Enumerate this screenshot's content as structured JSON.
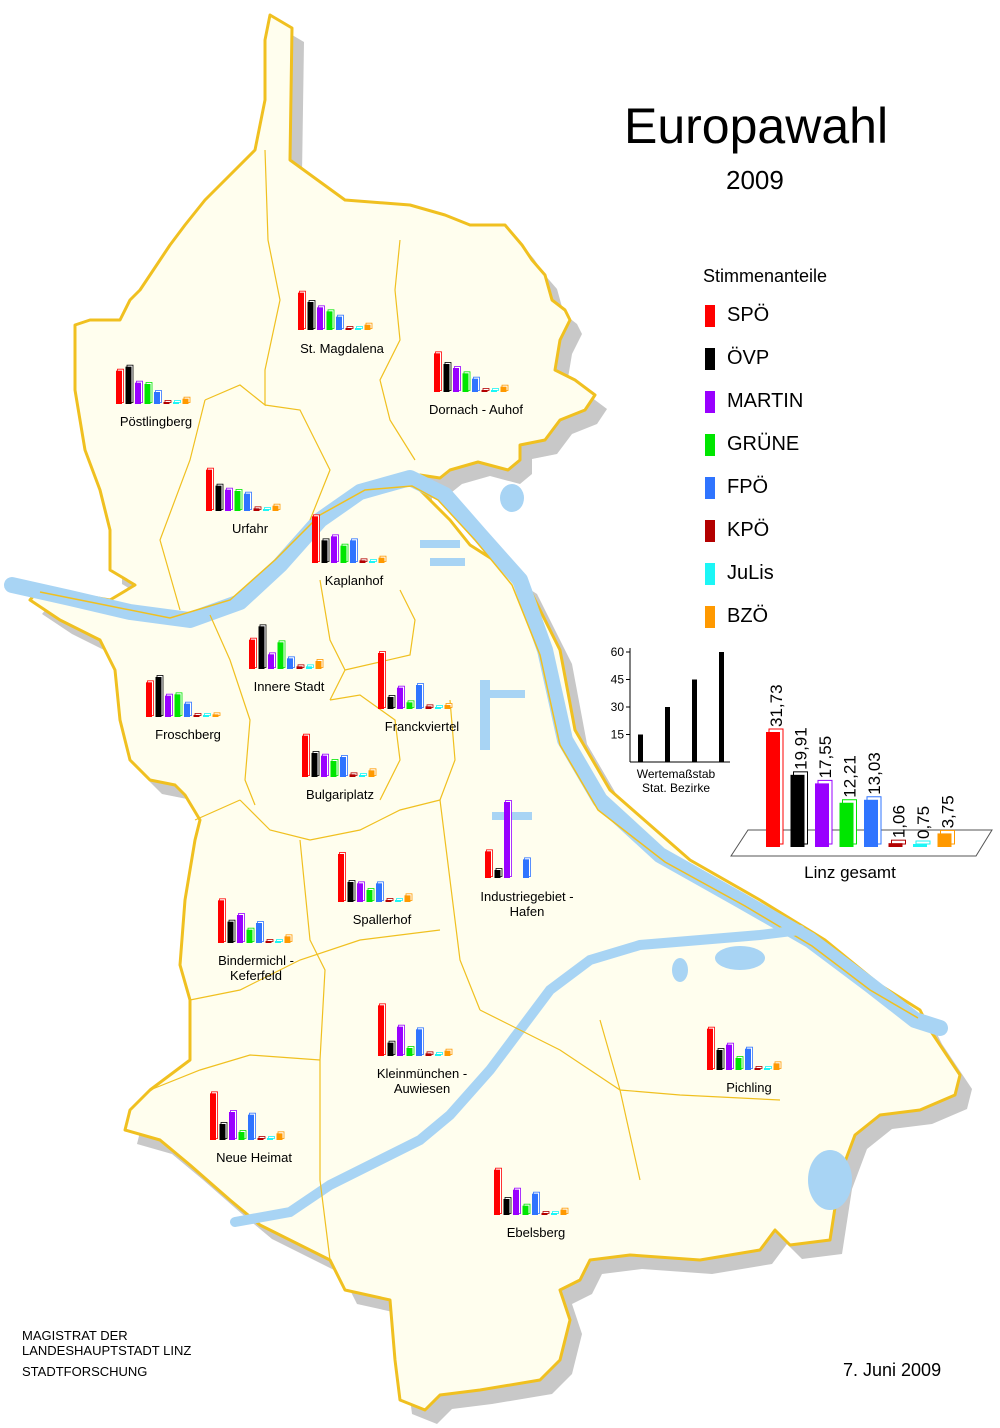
{
  "title": "Europawahl",
  "year": "2009",
  "legend": {
    "title": "Stimmenanteile",
    "items": [
      {
        "label": "SPÖ",
        "color": "#ff0000"
      },
      {
        "label": "ÖVP",
        "color": "#000000"
      },
      {
        "label": "MARTIN",
        "color": "#9900ff"
      },
      {
        "label": "GRÜNE",
        "color": "#00e600"
      },
      {
        "label": "FPÖ",
        "color": "#2f74ff"
      },
      {
        "label": "KPÖ",
        "color": "#b30000"
      },
      {
        "label": "JuLis",
        "color": "#1cf6f6"
      },
      {
        "label": "BZÖ",
        "color": "#ff9900"
      }
    ]
  },
  "scale": {
    "ticks": [
      0,
      15,
      30,
      45,
      60
    ],
    "tick_labels": [
      "15",
      "30",
      "45",
      "60"
    ],
    "label_line1": "Wertemaßstab",
    "label_line2": "Stat. Bezirke"
  },
  "chart_data": {
    "type": "bar",
    "title": "Linz gesamt",
    "categories": [
      "SPÖ",
      "ÖVP",
      "MARTIN",
      "GRÜNE",
      "FPÖ",
      "KPÖ",
      "JuLis",
      "BZÖ"
    ],
    "values": [
      31.73,
      19.91,
      17.55,
      12.21,
      13.03,
      1.06,
      0.75,
      3.75
    ],
    "value_labels": [
      "31,73",
      "19,91",
      "17,55",
      "12,21",
      "13,03",
      "1,06",
      "0,75",
      "3,75"
    ]
  },
  "districts": [
    {
      "name": "St. Magdalena",
      "values": [
        28,
        21,
        17,
        14,
        10,
        1,
        1,
        4
      ]
    },
    {
      "name": "Dornach - Auhof",
      "values": [
        29,
        21,
        18,
        14,
        10,
        1,
        1,
        4
      ]
    },
    {
      "name": "Pöstlingberg",
      "values": [
        25,
        28,
        16,
        15,
        9,
        1,
        1,
        4
      ]
    },
    {
      "name": "Urfahr",
      "values": [
        31,
        19,
        16,
        15,
        13,
        2,
        1,
        4
      ]
    },
    {
      "name": "Kaplanhof",
      "values": [
        35,
        17,
        20,
        13,
        17,
        2,
        1,
        4
      ]
    },
    {
      "name": "Innere Stadt",
      "values": [
        22,
        32,
        11,
        20,
        8,
        2,
        2,
        6
      ]
    },
    {
      "name": "Franckviertel",
      "values": [
        42,
        9,
        16,
        5,
        18,
        2,
        1,
        3
      ]
    },
    {
      "name": "Froschberg",
      "values": [
        26,
        30,
        16,
        17,
        10,
        1,
        1,
        2
      ]
    },
    {
      "name": "Bulgariplatz",
      "values": [
        31,
        18,
        16,
        12,
        15,
        2,
        1,
        5
      ]
    },
    {
      "name": "Spallerhof",
      "values": [
        36,
        15,
        14,
        9,
        14,
        1,
        1,
        5
      ]
    },
    {
      "name": "Industriegebiet - Hafen",
      "values": [
        20,
        6,
        57,
        0,
        14,
        0,
        0,
        0
      ]
    },
    {
      "name": "Bindermichl - Keferfeld",
      "values": [
        32,
        16,
        21,
        10,
        15,
        1,
        1,
        5
      ]
    },
    {
      "name": "Kleinmünchen - Auwiesen",
      "values": [
        38,
        10,
        22,
        6,
        20,
        2,
        1,
        4
      ]
    },
    {
      "name": "Pichling",
      "values": [
        31,
        15,
        19,
        9,
        16,
        1,
        1,
        5
      ]
    },
    {
      "name": "Neue Heimat",
      "values": [
        35,
        12,
        21,
        6,
        19,
        1,
        1,
        5
      ]
    },
    {
      "name": "Ebelsberg",
      "values": [
        34,
        12,
        19,
        7,
        16,
        1,
        1,
        4
      ]
    }
  ],
  "footer": {
    "line1": "MAGISTRAT  DER",
    "line2": "LANDESHAUPTSTADT  LINZ",
    "line3": "STADTFORSCHUNG"
  },
  "date": "7. Juni 2009"
}
